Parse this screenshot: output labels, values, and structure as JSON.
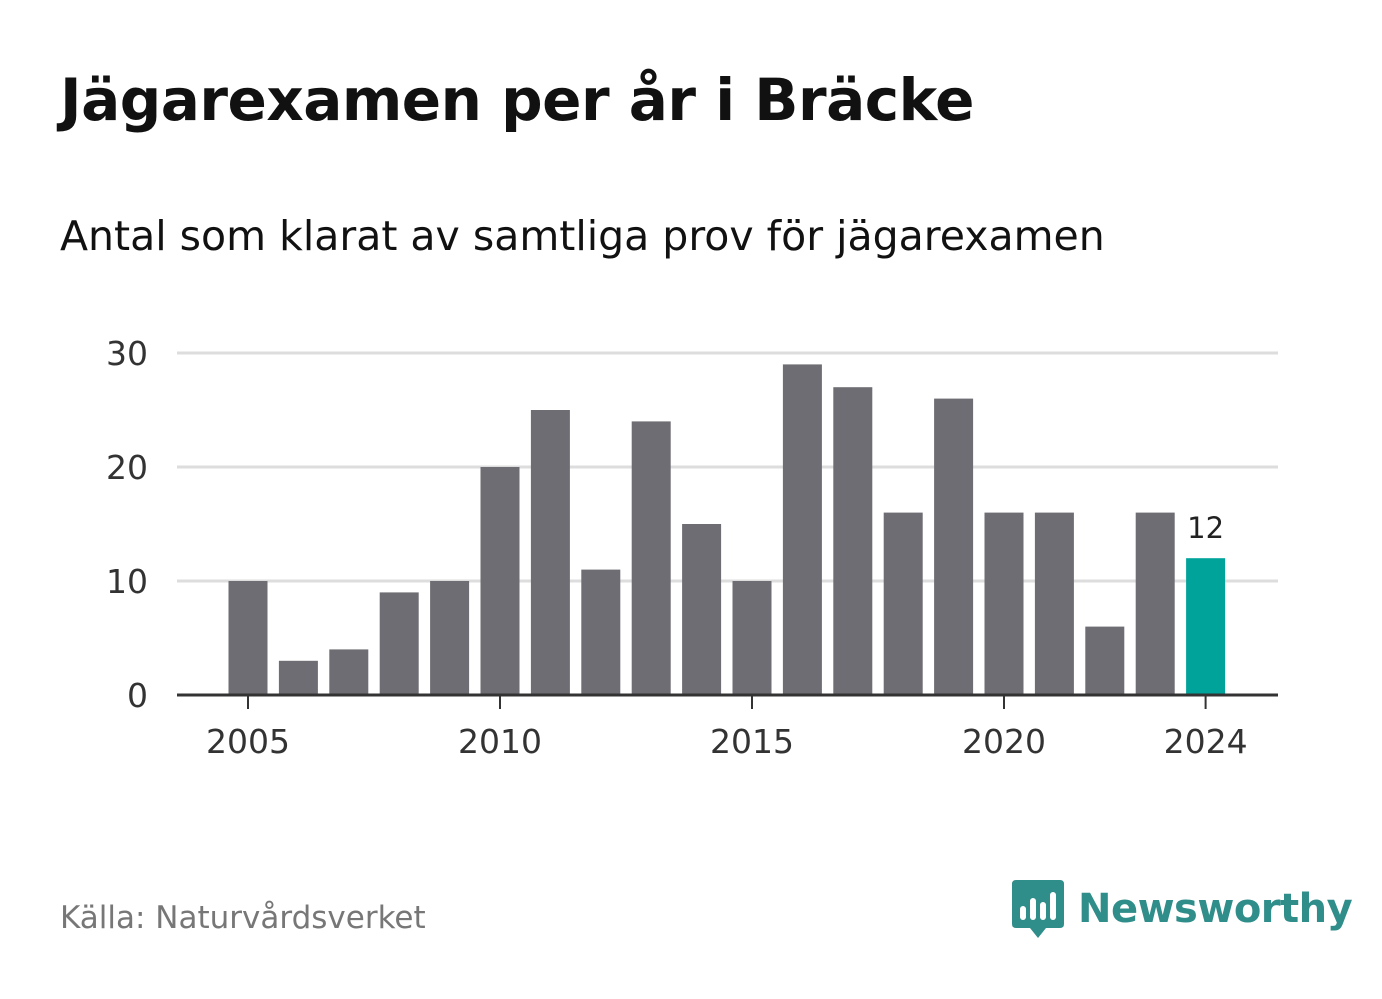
{
  "title": "Jägarexamen per år i Bräcke",
  "subtitle": "Antal som klarat av samtliga prov för jägarexamen",
  "source": "Källa: Naturvårdsverket",
  "brand": {
    "name": "Newsworthy",
    "icon": "newsworthy-logo-icon",
    "color": "#2f8d8a"
  },
  "colors": {
    "bar": "#6e6d73",
    "highlight": "#00a39a",
    "grid": "#dddddd",
    "axis": "#333333"
  },
  "chart_data": {
    "type": "bar",
    "categories": [
      2005,
      2006,
      2007,
      2008,
      2009,
      2010,
      2011,
      2012,
      2013,
      2014,
      2015,
      2016,
      2017,
      2018,
      2019,
      2020,
      2021,
      2022,
      2023,
      2024
    ],
    "values": [
      10,
      3,
      4,
      9,
      10,
      20,
      25,
      11,
      24,
      15,
      10,
      29,
      27,
      16,
      26,
      16,
      16,
      6,
      16,
      12
    ],
    "highlight": {
      "category": 2024,
      "label": "12"
    },
    "x_ticks": [
      "2005",
      "2010",
      "2015",
      "2020",
      "2024"
    ],
    "y_ticks": [
      "0",
      "10",
      "20",
      "30"
    ],
    "ylim": [
      0,
      30
    ],
    "xlabel": "",
    "ylabel": "",
    "grid": true,
    "legend": "none"
  }
}
